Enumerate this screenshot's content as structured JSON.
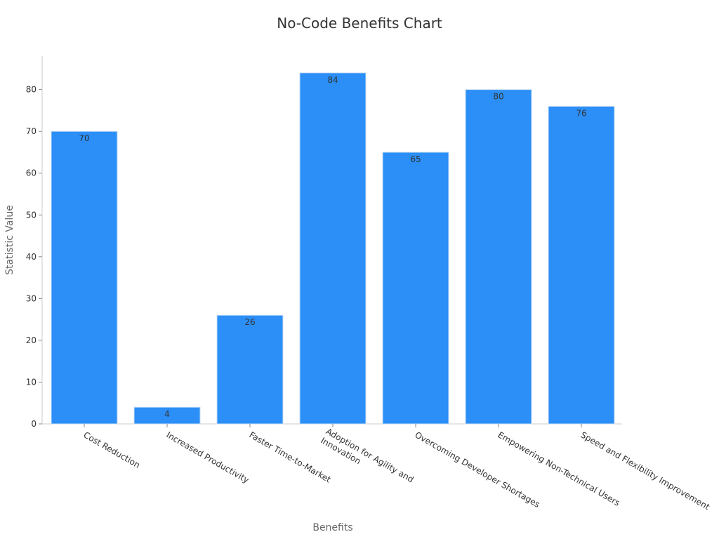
{
  "chart_data": {
    "type": "bar",
    "title": "No-Code Benefits Chart",
    "xlabel": "Benefits",
    "ylabel": "Statistic Value",
    "categories": [
      [
        "Cost Reduction"
      ],
      [
        "Increased Productivity"
      ],
      [
        "Faster Time-to-Market"
      ],
      [
        "Adoption for Agility and",
        "Innovation"
      ],
      [
        "Overcoming Developer Shortages"
      ],
      [
        "Empowering Non-Technical Users"
      ],
      [
        "Speed and Flexibility Improvement"
      ]
    ],
    "values": [
      70,
      4,
      26,
      84,
      65,
      80,
      76
    ],
    "ylim": [
      0,
      88
    ],
    "yticks": [
      0,
      10,
      20,
      30,
      40,
      50,
      60,
      70,
      80
    ],
    "bar_color": "#2b8ff7",
    "grid": false,
    "legend": "none"
  }
}
